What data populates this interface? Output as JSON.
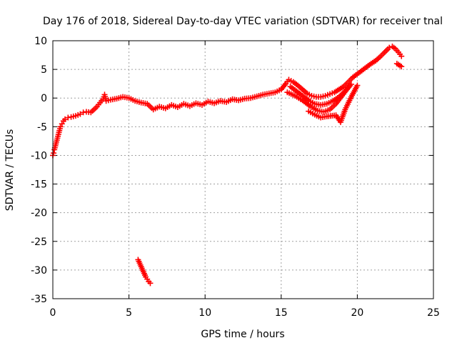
{
  "chart_data": {
    "type": "scatter",
    "title": "Day 176 of 2018, Sidereal Day-to-day VTEC variation (SDTVAR) for receiver tnal",
    "xlabel": "GPS time / hours",
    "ylabel": "SDTVAR / TECUs",
    "xlim": [
      0,
      25
    ],
    "ylim": [
      -35,
      10
    ],
    "xticks": [
      0,
      5,
      10,
      15,
      20,
      25
    ],
    "yticks": [
      -35,
      -30,
      -25,
      -20,
      -15,
      -10,
      -5,
      0,
      5,
      10
    ],
    "grid": true,
    "marker": "plus",
    "color": "#ff0000",
    "series": [
      {
        "name": "main-trace",
        "points": [
          [
            0.0,
            -10.0
          ],
          [
            0.05,
            -9.6
          ],
          [
            0.1,
            -9.0
          ],
          [
            0.2,
            -8.0
          ],
          [
            0.3,
            -7.0
          ],
          [
            0.4,
            -6.0
          ],
          [
            0.5,
            -5.0
          ],
          [
            0.6,
            -4.5
          ],
          [
            0.7,
            -4.0
          ],
          [
            0.8,
            -3.7
          ],
          [
            1.0,
            -3.4
          ],
          [
            1.2,
            -3.3
          ],
          [
            1.5,
            -3.1
          ],
          [
            1.8,
            -2.8
          ],
          [
            2.0,
            -2.5
          ],
          [
            2.2,
            -2.4
          ],
          [
            2.5,
            -2.5
          ],
          [
            2.7,
            -2.0
          ],
          [
            2.9,
            -1.5
          ],
          [
            3.1,
            -0.8
          ],
          [
            3.3,
            -0.2
          ],
          [
            3.4,
            0.6
          ],
          [
            3.5,
            -0.5
          ],
          [
            3.8,
            -0.3
          ],
          [
            4.2,
            -0.1
          ],
          [
            4.6,
            0.2
          ],
          [
            5.0,
            0.0
          ],
          [
            5.4,
            -0.5
          ],
          [
            5.8,
            -0.8
          ],
          [
            6.2,
            -1.0
          ],
          [
            6.4,
            -1.5
          ],
          [
            6.6,
            -2.0
          ],
          [
            7.0,
            -1.5
          ],
          [
            7.4,
            -1.8
          ],
          [
            7.8,
            -1.2
          ],
          [
            8.2,
            -1.6
          ],
          [
            8.6,
            -1.0
          ],
          [
            9.0,
            -1.4
          ],
          [
            9.4,
            -0.9
          ],
          [
            9.8,
            -1.2
          ],
          [
            10.2,
            -0.6
          ],
          [
            10.6,
            -0.9
          ],
          [
            11.0,
            -0.5
          ],
          [
            11.4,
            -0.7
          ],
          [
            11.8,
            -0.2
          ],
          [
            12.2,
            -0.4
          ],
          [
            12.6,
            -0.1
          ],
          [
            13.0,
            0.0
          ],
          [
            13.4,
            0.3
          ],
          [
            13.8,
            0.6
          ],
          [
            14.2,
            0.8
          ],
          [
            14.6,
            1.0
          ],
          [
            15.0,
            1.5
          ],
          [
            15.3,
            2.5
          ],
          [
            15.5,
            3.2
          ],
          [
            15.8,
            2.8
          ],
          [
            16.1,
            2.2
          ],
          [
            16.4,
            1.5
          ],
          [
            16.7,
            0.8
          ],
          [
            17.0,
            0.4
          ],
          [
            17.3,
            0.2
          ],
          [
            17.6,
            0.2
          ],
          [
            17.9,
            0.4
          ],
          [
            18.2,
            0.7
          ],
          [
            18.5,
            1.0
          ],
          [
            18.8,
            1.5
          ],
          [
            19.1,
            2.0
          ],
          [
            19.4,
            2.8
          ],
          [
            19.7,
            3.6
          ],
          [
            20.0,
            4.2
          ],
          [
            20.3,
            4.8
          ],
          [
            20.6,
            5.4
          ],
          [
            20.9,
            6.0
          ],
          [
            21.2,
            6.5
          ],
          [
            21.5,
            7.2
          ],
          [
            21.8,
            8.0
          ],
          [
            22.1,
            8.8
          ],
          [
            22.3,
            9.0
          ],
          [
            22.5,
            8.6
          ],
          [
            22.7,
            8.0
          ],
          [
            22.9,
            7.3
          ]
        ]
      },
      {
        "name": "diverging-branches",
        "points": [
          [
            15.6,
            2.0
          ],
          [
            16.0,
            1.2
          ],
          [
            16.4,
            0.4
          ],
          [
            16.8,
            -0.4
          ],
          [
            17.2,
            -1.0
          ],
          [
            17.6,
            -1.2
          ],
          [
            18.0,
            -1.0
          ],
          [
            18.4,
            -0.5
          ],
          [
            18.8,
            0.2
          ],
          [
            19.2,
            1.2
          ],
          [
            19.6,
            2.4
          ],
          [
            15.4,
            1.0
          ],
          [
            15.9,
            0.4
          ],
          [
            16.4,
            -0.4
          ],
          [
            16.9,
            -1.4
          ],
          [
            17.4,
            -2.2
          ],
          [
            17.8,
            -2.4
          ],
          [
            18.2,
            -2.0
          ],
          [
            18.6,
            -1.0
          ],
          [
            19.0,
            0.4
          ],
          [
            19.4,
            1.8
          ],
          [
            16.8,
            -2.3
          ],
          [
            17.2,
            -2.9
          ],
          [
            17.6,
            -3.4
          ],
          [
            18.0,
            -3.2
          ],
          [
            18.6,
            -3.0
          ],
          [
            18.9,
            -4.2
          ],
          [
            19.2,
            -2.0
          ],
          [
            19.6,
            0.2
          ],
          [
            20.0,
            2.2
          ],
          [
            22.6,
            6.0
          ],
          [
            22.9,
            5.5
          ]
        ]
      },
      {
        "name": "outlier-segment",
        "points": [
          [
            5.6,
            -28.2
          ],
          [
            5.7,
            -28.8
          ],
          [
            5.8,
            -29.4
          ],
          [
            5.9,
            -30.0
          ],
          [
            6.0,
            -30.6
          ],
          [
            6.1,
            -31.2
          ],
          [
            6.2,
            -31.6
          ],
          [
            6.3,
            -32.0
          ],
          [
            6.4,
            -32.3
          ]
        ]
      }
    ]
  }
}
